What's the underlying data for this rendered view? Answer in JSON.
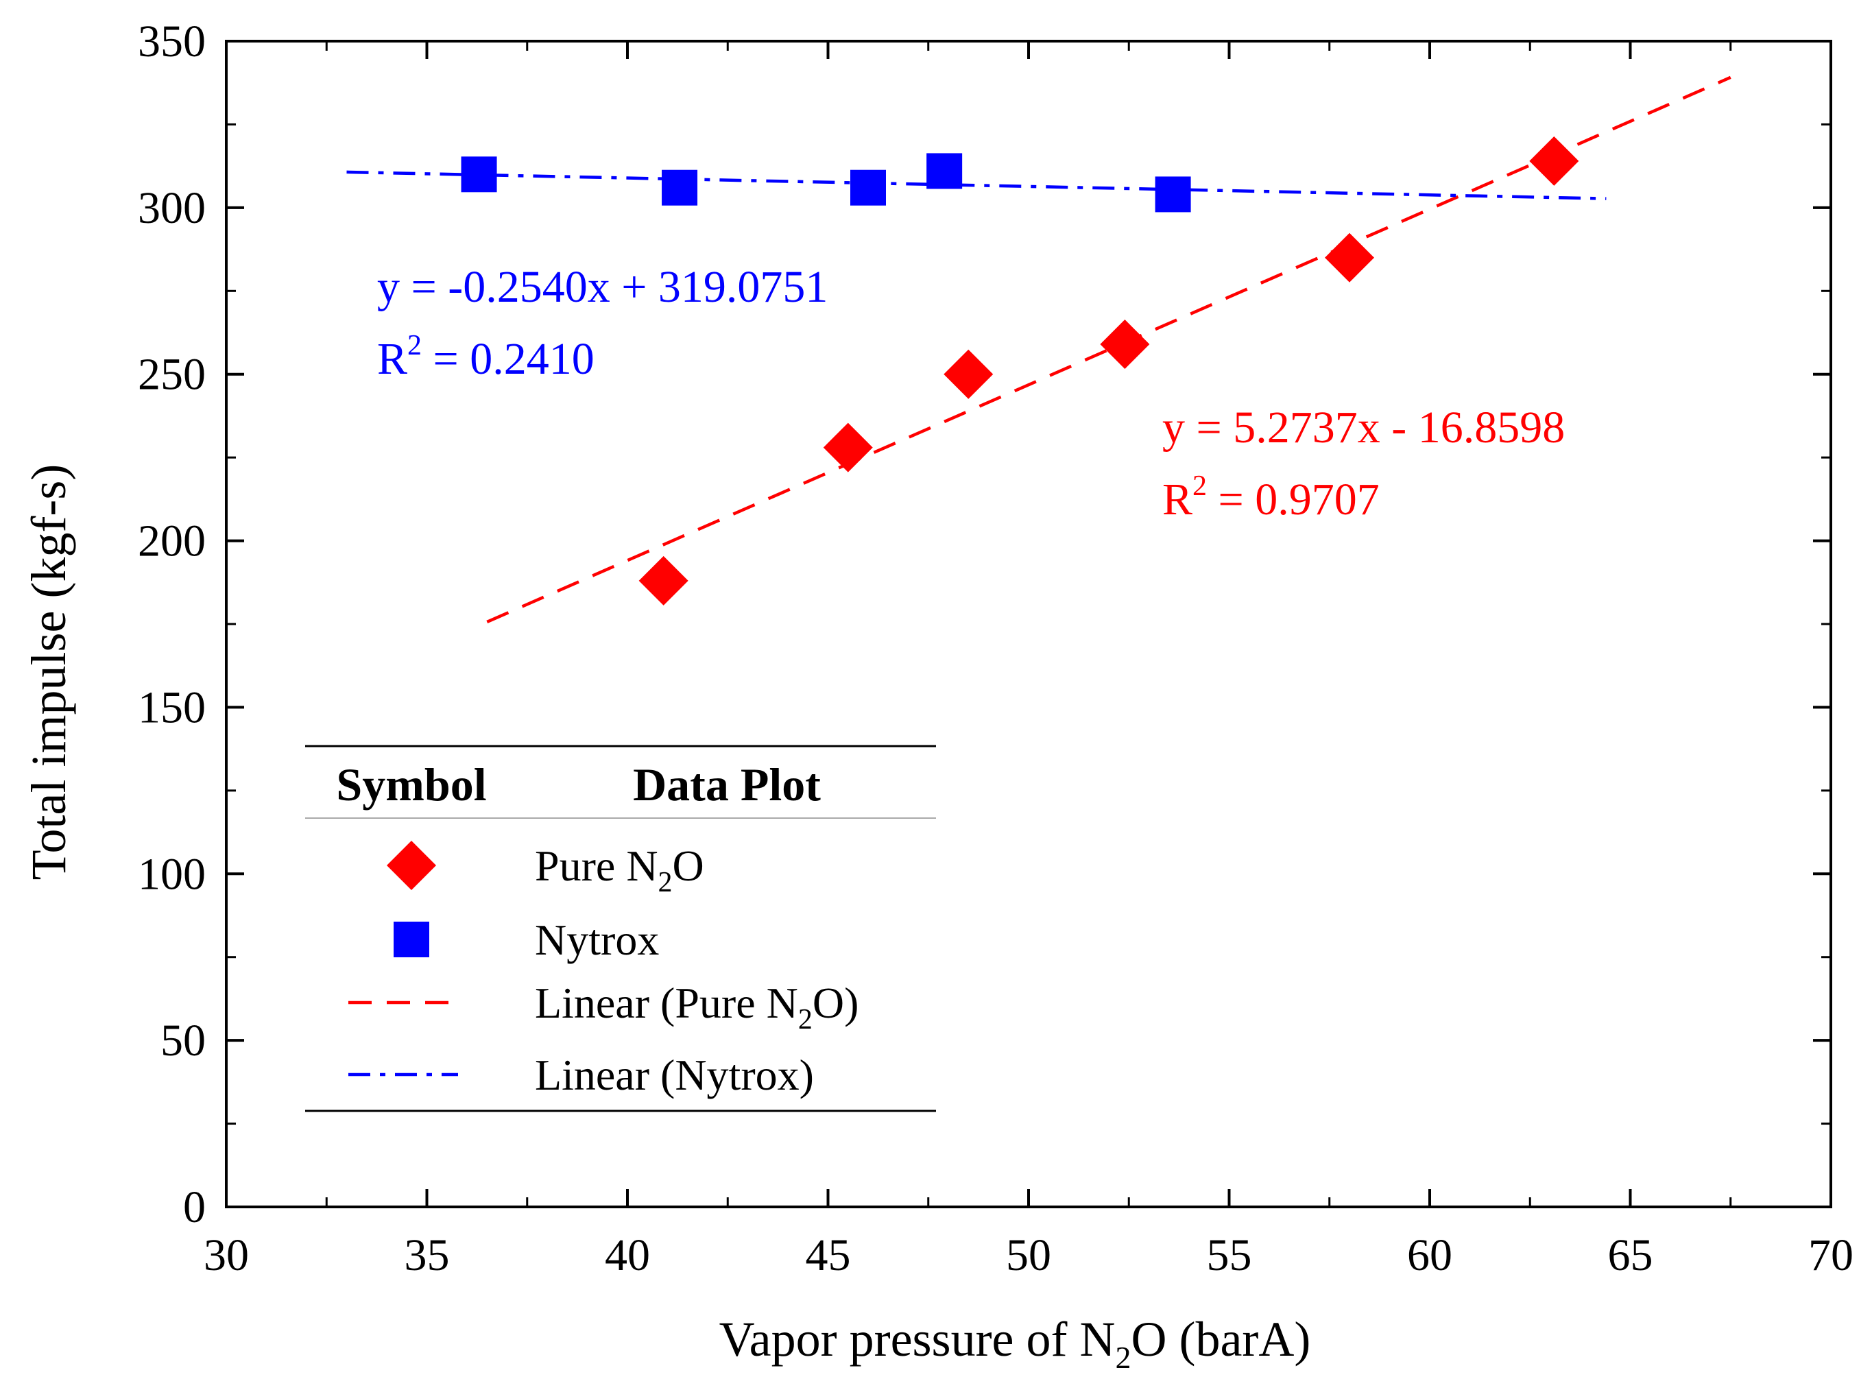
{
  "chart_data": {
    "type": "scatter",
    "xlabel": {
      "pre": "Vapor pressure of N",
      "sub": "2",
      "post": "O (barA)"
    },
    "ylabel": "Total impulse (kgf-s)",
    "xlim": [
      30,
      70
    ],
    "ylim": [
      0,
      350
    ],
    "x_ticks": [
      30,
      35,
      40,
      45,
      50,
      55,
      60,
      65,
      70
    ],
    "y_ticks": [
      0,
      50,
      100,
      150,
      200,
      250,
      300,
      350
    ],
    "x_tick_labels": [
      "30",
      "35",
      "40",
      "45",
      "50",
      "55",
      "60",
      "65",
      "70"
    ],
    "y_tick_labels": [
      "0",
      "50",
      "100",
      "150",
      "200",
      "250",
      "300",
      "350"
    ],
    "series": [
      {
        "name": "Pure N2O",
        "marker": "diamond",
        "color": "#ff0000",
        "x": [
          40.9,
          45.5,
          48.5,
          52.4,
          58.0,
          63.1
        ],
        "y": [
          188,
          228,
          250,
          259,
          285,
          314
        ]
      },
      {
        "name": "Nytrox",
        "marker": "square",
        "color": "#0000ff",
        "x": [
          36.3,
          41.3,
          46.0,
          47.9,
          53.6
        ],
        "y": [
          310,
          306,
          306,
          311,
          304
        ]
      }
    ],
    "trendlines": [
      {
        "name": "Linear (Pure N2O)",
        "style": "dash",
        "color": "#ff0000",
        "slope": 5.2737,
        "intercept": -16.8598,
        "x_range": [
          36.5,
          67.5
        ],
        "equation": "y = 5.2737x - 16.8598",
        "r2_label": "R",
        "r2_sup": "2",
        "r2_value": " = 0.9707"
      },
      {
        "name": "Linear (Nytrox)",
        "style": "dashdot",
        "color": "#0000ff",
        "slope": -0.254,
        "intercept": 319.0751,
        "x_range": [
          33.0,
          64.4
        ],
        "equation": "y = -0.2540x + 319.0751",
        "r2_label": "R",
        "r2_sup": "2",
        "r2_value": " = 0.2410"
      }
    ],
    "legend": {
      "header_symbol": "Symbol",
      "header_data": "Data Plot",
      "placement": "lower-left",
      "entries": [
        {
          "kind": "diamond",
          "color": "#ff0000",
          "pre": "Pure N",
          "sub": "2",
          "post": "O"
        },
        {
          "kind": "square",
          "color": "#0000ff",
          "pre": "Nytrox",
          "sub": "",
          "post": ""
        },
        {
          "kind": "dash",
          "color": "#ff0000",
          "pre": "Linear (Pure N",
          "sub": "2",
          "post": "O)"
        },
        {
          "kind": "dashdot",
          "color": "#0000ff",
          "pre": "Linear (Nytrox)",
          "sub": "",
          "post": ""
        }
      ]
    }
  }
}
